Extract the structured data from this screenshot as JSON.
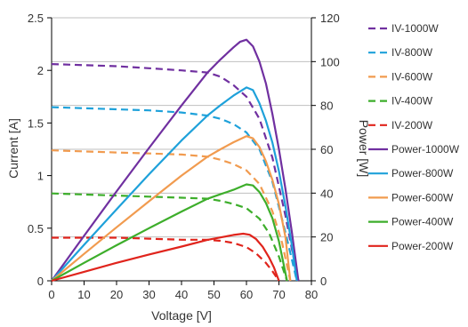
{
  "chart_data": {
    "type": "line",
    "title": "",
    "xlabel": "Voltage [V]",
    "ylabel_left": "Current [A]",
    "ylabel_right": "Power [W]",
    "xlim": [
      0,
      80
    ],
    "ylim_left": [
      0,
      2.5
    ],
    "ylim_right": [
      0,
      120
    ],
    "x_ticks": [
      "0",
      "10",
      "20",
      "30",
      "40",
      "50",
      "60",
      "70",
      "80"
    ],
    "y_left_ticks": [
      "0",
      "0.5",
      "1",
      "1.5",
      "2",
      "2.5"
    ],
    "y_right_ticks": [
      "0",
      "20",
      "40",
      "60",
      "80",
      "100",
      "120"
    ],
    "grid": "horizontal",
    "legend_position": "right",
    "series": [
      {
        "name": "IV-1000W",
        "axis": "left",
        "style": "dashed",
        "color": "#7030A0",
        "x": [
          0,
          10,
          20,
          30,
          40,
          48,
          52,
          56,
          60,
          64,
          68,
          72,
          74,
          76
        ],
        "y": [
          2.06,
          2.05,
          2.04,
          2.02,
          2.0,
          1.98,
          1.94,
          1.86,
          1.75,
          1.54,
          1.17,
          0.62,
          0.3,
          0.0
        ]
      },
      {
        "name": "IV-800W",
        "axis": "left",
        "style": "dashed",
        "color": "#1EA1DA",
        "x": [
          0,
          10,
          20,
          30,
          40,
          48,
          52,
          56,
          60,
          64,
          68,
          72,
          74,
          75.5
        ],
        "y": [
          1.65,
          1.64,
          1.63,
          1.62,
          1.6,
          1.57,
          1.54,
          1.49,
          1.41,
          1.25,
          0.94,
          0.46,
          0.2,
          0.0
        ]
      },
      {
        "name": "IV-600W",
        "axis": "left",
        "style": "dashed",
        "color": "#F19B4F",
        "x": [
          0,
          10,
          20,
          30,
          40,
          48,
          52,
          56,
          60,
          64,
          68,
          71,
          73.5
        ],
        "y": [
          1.24,
          1.23,
          1.22,
          1.21,
          1.2,
          1.18,
          1.15,
          1.11,
          1.05,
          0.92,
          0.66,
          0.36,
          0.0
        ]
      },
      {
        "name": "IV-400W",
        "axis": "left",
        "style": "dashed",
        "color": "#3DAE2B",
        "x": [
          0,
          10,
          20,
          30,
          40,
          48,
          52,
          56,
          60,
          64,
          67,
          70,
          72.5
        ],
        "y": [
          0.83,
          0.82,
          0.81,
          0.8,
          0.79,
          0.78,
          0.76,
          0.73,
          0.69,
          0.59,
          0.45,
          0.23,
          0.0
        ]
      },
      {
        "name": "IV-200W",
        "axis": "left",
        "style": "dashed",
        "color": "#E0241C",
        "x": [
          0,
          10,
          20,
          30,
          40,
          48,
          52,
          56,
          60,
          63,
          66,
          68,
          70
        ],
        "y": [
          0.41,
          0.41,
          0.41,
          0.4,
          0.39,
          0.39,
          0.38,
          0.36,
          0.32,
          0.26,
          0.17,
          0.09,
          0.0
        ]
      },
      {
        "name": "Power-1000W",
        "axis": "right",
        "style": "solid",
        "color": "#7030A0",
        "x": [
          0,
          10,
          20,
          30,
          40,
          48,
          52,
          56,
          58,
          60,
          62,
          64,
          66,
          68,
          70,
          72,
          74,
          76
        ],
        "y": [
          0,
          20.5,
          40.8,
          60.6,
          80,
          95,
          101,
          106.5,
          109,
          110,
          107,
          100,
          90,
          76,
          60,
          42,
          22,
          0
        ]
      },
      {
        "name": "Power-800W",
        "axis": "right",
        "style": "solid",
        "color": "#1EA1DA",
        "x": [
          0,
          10,
          20,
          30,
          40,
          48,
          52,
          56,
          60,
          62,
          64,
          66,
          68,
          70,
          72,
          74,
          75.5
        ],
        "y": [
          0,
          16.4,
          32.6,
          48.6,
          64,
          75.4,
          80.1,
          84.5,
          88.2,
          87,
          81,
          73,
          63,
          50,
          34,
          16,
          0
        ]
      },
      {
        "name": "Power-600W",
        "axis": "right",
        "style": "solid",
        "color": "#F19B4F",
        "x": [
          0,
          10,
          20,
          30,
          40,
          48,
          52,
          56,
          60,
          62,
          64,
          66,
          68,
          70,
          72,
          73.5
        ],
        "y": [
          0,
          12.3,
          24.4,
          36.3,
          48,
          56.6,
          60,
          63.2,
          66,
          65,
          61,
          54.5,
          46,
          35,
          20,
          0
        ]
      },
      {
        "name": "Power-400W",
        "axis": "right",
        "style": "solid",
        "color": "#3DAE2B",
        "x": [
          0,
          10,
          20,
          30,
          40,
          48,
          52,
          56,
          60,
          62,
          64,
          66,
          68,
          70,
          72.5
        ],
        "y": [
          0,
          8.2,
          16.2,
          24,
          31.6,
          37.4,
          39.5,
          41.5,
          44,
          43.5,
          40.5,
          35.5,
          28.5,
          18,
          0
        ]
      },
      {
        "name": "Power-200W",
        "axis": "right",
        "style": "solid",
        "color": "#E0241C",
        "x": [
          0,
          10,
          20,
          30,
          40,
          48,
          52,
          56,
          59,
          61,
          63,
          65,
          67,
          68.5,
          70
        ],
        "y": [
          0,
          4.1,
          8.2,
          12,
          15.6,
          18.7,
          19.8,
          20.9,
          21.5,
          21,
          19,
          15.5,
          10.5,
          6,
          0
        ]
      }
    ]
  }
}
